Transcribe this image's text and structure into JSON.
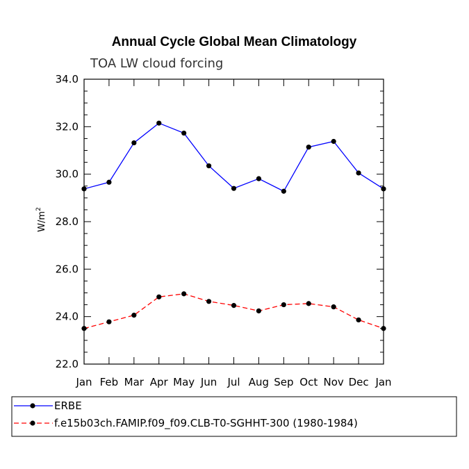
{
  "chart_data": {
    "type": "line",
    "title": "Annual Cycle Global Mean Climatology",
    "subtitle": "TOA LW cloud forcing",
    "ylabel": "W/m",
    "ylabel_superscript": "2",
    "xlabel": "",
    "categories": [
      "Jan",
      "Feb",
      "Mar",
      "Apr",
      "May",
      "Jun",
      "Jul",
      "Aug",
      "Sep",
      "Oct",
      "Nov",
      "Dec",
      "Jan"
    ],
    "ylim": [
      22.0,
      34.0
    ],
    "yticks": [
      "22.0",
      "24.0",
      "26.0",
      "28.0",
      "30.0",
      "32.0",
      "34.0"
    ],
    "yticks_values": [
      22,
      24,
      26,
      28,
      30,
      32,
      34
    ],
    "grid": false,
    "legend_placement": "bottom",
    "series": [
      {
        "name": "ERBE",
        "color": "#0000ff",
        "dash": "solid",
        "marker": "dot",
        "values": [
          29.38,
          29.66,
          31.32,
          32.15,
          31.73,
          30.35,
          29.4,
          29.81,
          29.28,
          31.14,
          31.38,
          30.05,
          29.38
        ]
      },
      {
        "name": "f.e15b03ch.FAMIP.f09_f09.CLB-T0-SGHHT-300 (1980-1984)",
        "color": "#ff0000",
        "dash": "dashed",
        "marker": "dot",
        "values": [
          23.5,
          23.78,
          24.06,
          24.83,
          24.96,
          24.64,
          24.47,
          24.24,
          24.5,
          24.55,
          24.41,
          23.86,
          23.5
        ]
      }
    ]
  }
}
